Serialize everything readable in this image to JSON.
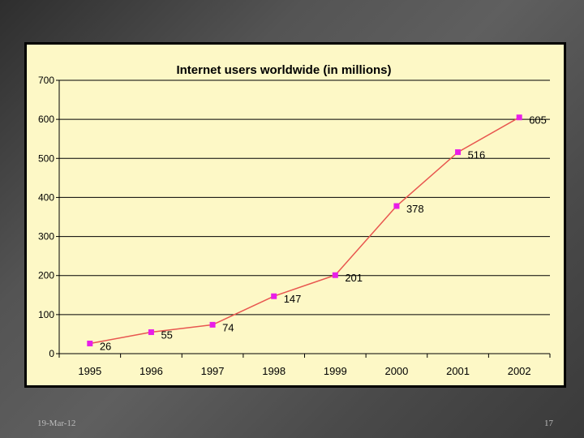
{
  "slide": {
    "date": "19-Mar-12",
    "page_number": "17"
  },
  "colors": {
    "plot_background": "#fdf8c6",
    "line": "#e8564f",
    "marker": "#e81ee8",
    "grid": "#000000"
  },
  "chart_data": {
    "type": "line",
    "title": "Internet users worldwide (in millions)",
    "xlabel": "",
    "ylabel": "",
    "categories": [
      "1995",
      "1996",
      "1997",
      "1998",
      "1999",
      "2000",
      "2001",
      "2002"
    ],
    "series": [
      {
        "values": [
          26,
          55,
          74,
          147,
          201,
          378,
          516,
          605
        ]
      }
    ],
    "data_labels": [
      "26",
      "55",
      "74",
      "147",
      "201",
      "378",
      "516",
      "605"
    ],
    "ylim": [
      0,
      700
    ],
    "yticks": [
      0,
      100,
      200,
      300,
      400,
      500,
      600,
      700
    ],
    "grid": true,
    "legend": "none"
  }
}
